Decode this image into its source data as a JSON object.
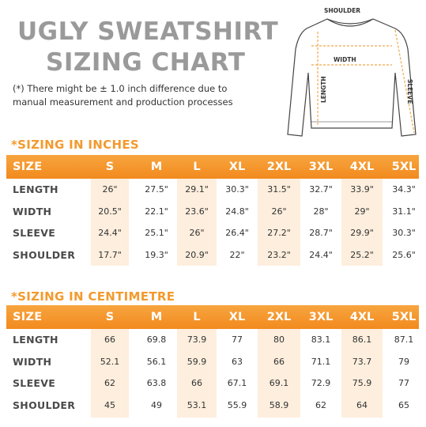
{
  "title_line1": "UGLY SWEATSHIRT",
  "title_line2": "SIZING CHART",
  "note_line1": "(*) There might be ± 1.0 inch difference due to",
  "note_line2": "manual measurement and production processes",
  "diagram": {
    "shoulder": "SHOULDER",
    "width": "WIDTH",
    "length": "LENGTH",
    "sleeve": "SLEEVE"
  },
  "inches": {
    "title": "*SIZING IN INCHES",
    "header": [
      "SIZE",
      "S",
      "M",
      "L",
      "XL",
      "2XL",
      "3XL",
      "4XL",
      "5XL"
    ],
    "rows": [
      {
        "label": "LENGTH",
        "values": [
          "26\"",
          "27.5\"",
          "29.1\"",
          "30.3\"",
          "31.5\"",
          "32.7\"",
          "33.9\"",
          "34.3\""
        ]
      },
      {
        "label": "WIDTH",
        "values": [
          "20.5\"",
          "22.1\"",
          "23.6\"",
          "24.8\"",
          "26\"",
          "28\"",
          "29\"",
          "31.1\""
        ]
      },
      {
        "label": "SLEEVE",
        "values": [
          "24.4\"",
          "25.1\"",
          "26\"",
          "26.4\"",
          "27.2\"",
          "28.7\"",
          "29.9\"",
          "30.3\""
        ]
      },
      {
        "label": "SHOULDER",
        "values": [
          "17.7\"",
          "19.3\"",
          "20.9\"",
          "22\"",
          "23.2\"",
          "24.4\"",
          "25.2\"",
          "25.6\""
        ]
      }
    ]
  },
  "centimetre": {
    "title": "*SIZING IN CENTIMETRE",
    "header": [
      "SIZE",
      "S",
      "M",
      "L",
      "XL",
      "2XL",
      "3XL",
      "4XL",
      "5XL"
    ],
    "rows": [
      {
        "label": "LENGTH",
        "values": [
          "66",
          "69.8",
          "73.9",
          "77",
          "80",
          "83.1",
          "86.1",
          "87.1"
        ]
      },
      {
        "label": "WIDTH",
        "values": [
          "52.1",
          "56.1",
          "59.9",
          "63",
          "66",
          "71.1",
          "73.7",
          "79"
        ]
      },
      {
        "label": "SLEEVE",
        "values": [
          "62",
          "63.8",
          "66",
          "67.1",
          "69.1",
          "72.9",
          "75.9",
          "77"
        ]
      },
      {
        "label": "SHOULDER",
        "values": [
          "45",
          "49",
          "53.1",
          "55.9",
          "58.9",
          "62",
          "64",
          "65"
        ]
      }
    ]
  },
  "colors": {
    "accent": "#f39a2e",
    "stripe": "#fdeedd",
    "title_gray": "#9a9a9a"
  }
}
